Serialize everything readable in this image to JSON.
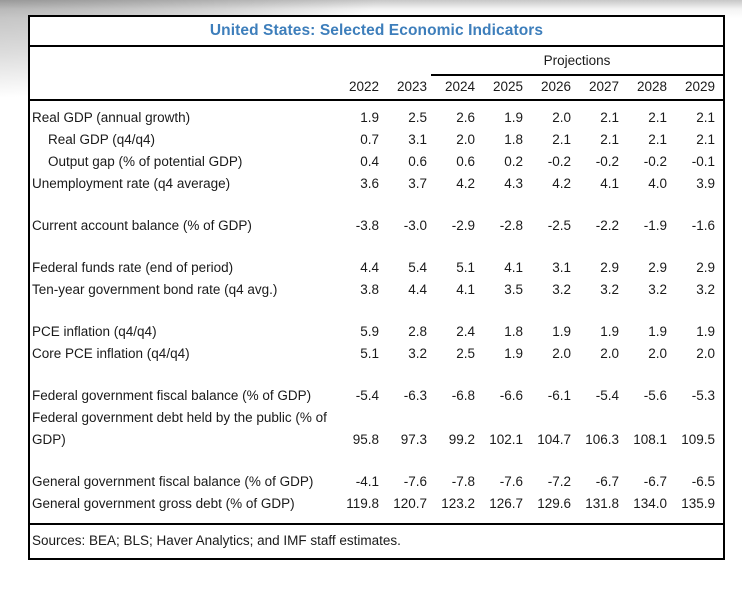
{
  "page": {
    "title": "United States: Selected Economic Indicators"
  },
  "header": {
    "projections_label": "Projections",
    "years": [
      "2022",
      "2023",
      "2024",
      "2025",
      "2026",
      "2027",
      "2028",
      "2029"
    ],
    "projection_years_start": "2024"
  },
  "table": {
    "groups": [
      {
        "rows": [
          {
            "label": "Real GDP (annual growth)",
            "indent": false,
            "values": [
              "1.9",
              "2.5",
              "2.6",
              "1.9",
              "2.0",
              "2.1",
              "2.1",
              "2.1"
            ]
          },
          {
            "label": "Real GDP (q4/q4)",
            "indent": true,
            "values": [
              "0.7",
              "3.1",
              "2.0",
              "1.8",
              "2.1",
              "2.1",
              "2.1",
              "2.1"
            ]
          },
          {
            "label": "Output gap (% of potential GDP)",
            "indent": true,
            "values": [
              "0.4",
              "0.6",
              "0.6",
              "0.2",
              "-0.2",
              "-0.2",
              "-0.2",
              "-0.1"
            ]
          },
          {
            "label": "Unemployment rate (q4 average)",
            "indent": false,
            "values": [
              "3.6",
              "3.7",
              "4.2",
              "4.3",
              "4.2",
              "4.1",
              "4.0",
              "3.9"
            ]
          }
        ]
      },
      {
        "rows": [
          {
            "label": "Current account balance (% of GDP)",
            "indent": false,
            "values": [
              "-3.8",
              "-3.0",
              "-2.9",
              "-2.8",
              "-2.5",
              "-2.2",
              "-1.9",
              "-1.6"
            ]
          }
        ]
      },
      {
        "rows": [
          {
            "label": "Federal funds rate (end of period)",
            "indent": false,
            "values": [
              "4.4",
              "5.4",
              "5.1",
              "4.1",
              "3.1",
              "2.9",
              "2.9",
              "2.9"
            ]
          },
          {
            "label": "Ten-year government bond rate (q4 avg.)",
            "indent": false,
            "values": [
              "3.8",
              "4.4",
              "4.1",
              "3.5",
              "3.2",
              "3.2",
              "3.2",
              "3.2"
            ]
          }
        ]
      },
      {
        "rows": [
          {
            "label": "PCE inflation (q4/q4)",
            "indent": false,
            "values": [
              "5.9",
              "2.8",
              "2.4",
              "1.8",
              "1.9",
              "1.9",
              "1.9",
              "1.9"
            ]
          },
          {
            "label": "Core PCE inflation (q4/q4)",
            "indent": false,
            "values": [
              "5.1",
              "3.2",
              "2.5",
              "1.9",
              "2.0",
              "2.0",
              "2.0",
              "2.0"
            ]
          }
        ]
      },
      {
        "rows": [
          {
            "label": "Federal government fiscal balance (% of GDP)",
            "indent": false,
            "values": [
              "-5.4",
              "-6.3",
              "-6.8",
              "-6.6",
              "-6.1",
              "-5.4",
              "-5.6",
              "-5.3"
            ]
          },
          {
            "label": "Federal government debt held by the public (% of GDP)",
            "indent": false,
            "values": [
              "95.8",
              "97.3",
              "99.2",
              "102.1",
              "104.7",
              "106.3",
              "108.1",
              "109.5"
            ]
          }
        ]
      },
      {
        "rows": [
          {
            "label": "General government fiscal balance (% of GDP)",
            "indent": false,
            "values": [
              "-4.1",
              "-7.6",
              "-7.8",
              "-7.6",
              "-7.2",
              "-6.7",
              "-6.7",
              "-6.5"
            ]
          },
          {
            "label": "General government gross debt (% of GDP)",
            "indent": false,
            "values": [
              "119.8",
              "120.7",
              "123.2",
              "126.7",
              "129.6",
              "131.8",
              "134.0",
              "135.9"
            ]
          }
        ]
      }
    ]
  },
  "footer": {
    "sources": "Sources: BEA; BLS; Haver Analytics; and IMF staff estimates."
  },
  "colors": {
    "title_blue": "#3D7EBB",
    "border_black": "#000000",
    "text": "#1A1A1A"
  }
}
